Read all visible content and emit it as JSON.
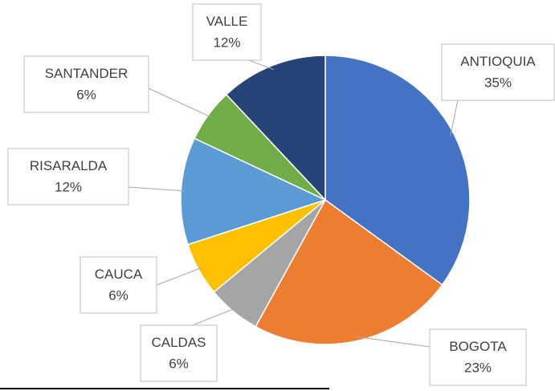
{
  "chart_data": {
    "type": "pie",
    "categories": [
      "ANTIOQUIA",
      "BOGOTA",
      "CALDAS",
      "CAUCA",
      "RISARALDA",
      "SANTANDER",
      "VALLE"
    ],
    "values": [
      35,
      23,
      6,
      6,
      12,
      6,
      12
    ],
    "value_labels": [
      "35%",
      "23%",
      "6%",
      "6%",
      "12%",
      "6%",
      "12%"
    ],
    "colors": [
      "#4472c4",
      "#ed7d31",
      "#a5a5a5",
      "#ffc000",
      "#5b9bd5",
      "#70ad47",
      "#264478"
    ]
  }
}
